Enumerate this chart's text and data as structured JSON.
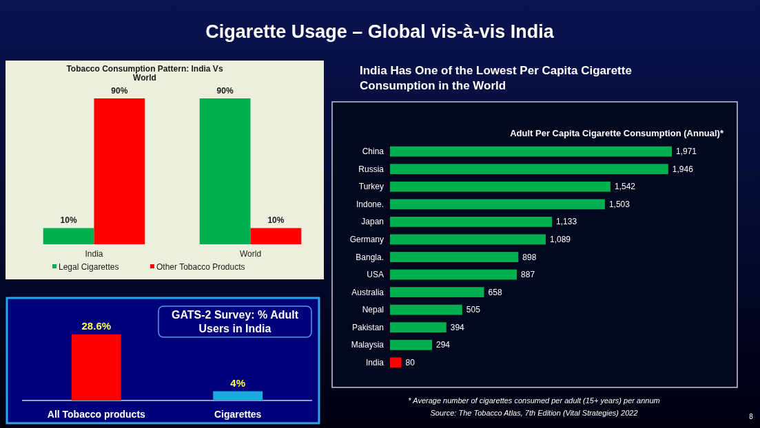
{
  "chart_data": [
    {
      "type": "bar",
      "title": "Tobacco Consumption Pattern: India Vs World",
      "categories": [
        "India",
        "World"
      ],
      "series": [
        {
          "name": "Legal Cigarettes",
          "color": "#00b050",
          "values": [
            10,
            90
          ],
          "value_labels": [
            "10%",
            "90%"
          ]
        },
        {
          "name": "Other Tobacco Products",
          "color": "#ff0000",
          "values": [
            90,
            10
          ],
          "value_labels": [
            "90%",
            "10%"
          ]
        }
      ],
      "legend": "bottom",
      "annotations": [
        "Cigarette Usage – Global vis-à-vis India"
      ]
    },
    {
      "type": "bar",
      "orientation": "horizontal",
      "title": "India Has One of the Lowest Per Capita Cigarette Consumption in the World",
      "subtitle": "Adult Per Capita Cigarette Consumption (Annual)*",
      "categories": [
        "China",
        "Russia",
        "Turkey",
        "Indone.",
        "Japan",
        "Germany",
        "Bangla.",
        "USA",
        "Australia",
        "Nepal",
        "Pakistan",
        "Malaysia",
        "India"
      ],
      "values": [
        1971,
        1946,
        1542,
        1503,
        1133,
        1089,
        898,
        887,
        658,
        505,
        394,
        294,
        80
      ],
      "value_labels": [
        "1,971",
        "1,946",
        "1,542",
        "1,503",
        "1,133",
        "1,089",
        "898",
        "887",
        "658",
        "505",
        "394",
        "294",
        "80"
      ],
      "colors": [
        "#00b050",
        "#00b050",
        "#00b050",
        "#00b050",
        "#00b050",
        "#00b050",
        "#00b050",
        "#00b050",
        "#00b050",
        "#00b050",
        "#00b050",
        "#00b050",
        "#ff0000"
      ],
      "annotations": [
        "* Average number of cigarettes consumed per adult (15+ years) per annum",
        "Source: The Tobacco Atlas, 7th Edition (Vital Strategies) 2022",
        "8"
      ]
    },
    {
      "type": "bar",
      "title": "GATS-2 Survey: % Adult Users in India",
      "categories": [
        "All Tobacco products",
        "Cigarettes"
      ],
      "values": [
        28.6,
        4
      ],
      "value_labels": [
        "28.6%",
        "4%"
      ],
      "colors": [
        "#ff0000",
        "#1fa8e0"
      ]
    }
  ]
}
